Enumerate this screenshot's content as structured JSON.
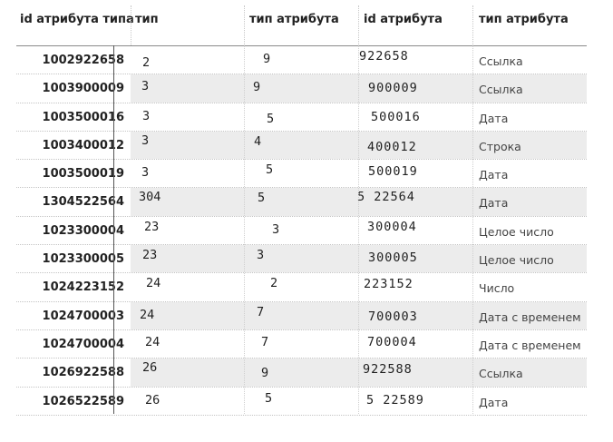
{
  "headers": {
    "col1": "id атрибута типа",
    "col2": "тип",
    "col3": "тип атрибута",
    "col4": "id атрибута",
    "col5": "тип атрибута"
  },
  "rows": [
    {
      "id": "1002922658",
      "tip": "2",
      "tip_attr": "9",
      "attr_id": "922658",
      "attr_type": "Ссылка"
    },
    {
      "id": "1003900009",
      "tip": "3",
      "tip_attr": "9",
      "attr_id": "900009",
      "attr_type": "Ссылка"
    },
    {
      "id": "1003500016",
      "tip": "3",
      "tip_attr": "5",
      "attr_id": "500016",
      "attr_type": "Дата"
    },
    {
      "id": "1003400012",
      "tip": "3",
      "tip_attr": "4",
      "attr_id": "400012",
      "attr_type": "Строка"
    },
    {
      "id": "1003500019",
      "tip": "3",
      "tip_attr": "5",
      "attr_id": "500019",
      "attr_type": "Дата"
    },
    {
      "id": "1304522564",
      "tip": "304",
      "tip_attr": "5",
      "attr_id": "5 22564",
      "attr_type": "Дата"
    },
    {
      "id": "1023300004",
      "tip": "23",
      "tip_attr": "3",
      "attr_id": "300004",
      "attr_type": "Целое число"
    },
    {
      "id": "1023300005",
      "tip": "23",
      "tip_attr": "3",
      "attr_id": "300005",
      "attr_type": "Целое число"
    },
    {
      "id": "1024223152",
      "tip": "24",
      "tip_attr": "2",
      "attr_id": "223152",
      "attr_type": "Число"
    },
    {
      "id": "1024700003",
      "tip": "24",
      "tip_attr": "7",
      "attr_id": "700003",
      "attr_type": "Дата с временем"
    },
    {
      "id": "1024700004",
      "tip": "24",
      "tip_attr": "7",
      "attr_id": "700004",
      "attr_type": "Дата с временем"
    },
    {
      "id": "1026922588",
      "tip": "26",
      "tip_attr": "9",
      "attr_id": "922588",
      "attr_type": "Ссылка"
    },
    {
      "id": "1026522589",
      "tip": "26",
      "tip_attr": "5",
      "attr_id": "5 22589",
      "attr_type": "Дата"
    }
  ]
}
